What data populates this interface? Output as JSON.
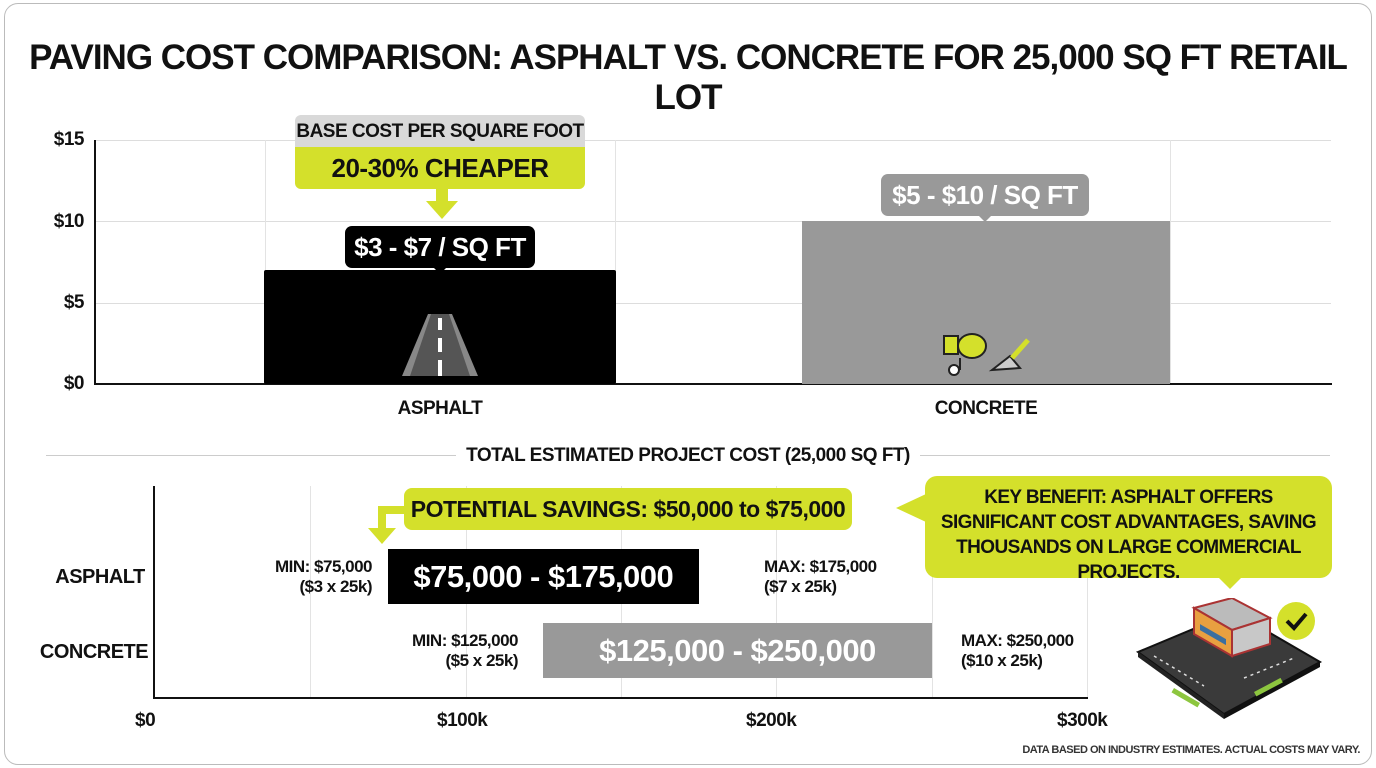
{
  "title": "PAVING COST COMPARISON: ASPHALT VS. CONCRETE FOR 25,000 SQ FT RETAIL LOT",
  "colors": {
    "asphalt": "#000000",
    "concrete": "#999999",
    "accent": "#d4e02b",
    "header_gray": "#d9d9d9"
  },
  "chart_data": [
    {
      "type": "bar",
      "categories": [
        "ASPHALT",
        "CONCRETE"
      ],
      "values": [
        7,
        10
      ],
      "ranges": [
        [
          3,
          7
        ],
        [
          5,
          10
        ]
      ],
      "data_labels": [
        "$3 - $7 / SQ FT",
        "$5 - $10 / SQ FT"
      ],
      "ylim": [
        0,
        15
      ],
      "yticks": [
        "$0",
        "$5",
        "$10",
        "$15"
      ],
      "grid": true,
      "annotation": {
        "header": "BASE COST PER SQUARE FOOT",
        "text": "20-30% CHEAPER"
      },
      "icons": [
        "road-icon",
        "cement-mixer-icon"
      ]
    },
    {
      "type": "bar",
      "orientation": "horizontal-range",
      "title": "TOTAL ESTIMATED PROJECT COST (25,000 SQ FT)",
      "categories": [
        "ASPHALT",
        "CONCRETE"
      ],
      "ranges": [
        [
          75000,
          175000
        ],
        [
          125000,
          250000
        ]
      ],
      "data_labels": [
        "$75,000 - $175,000",
        "$125,000 - $250,000"
      ],
      "min_labels": [
        [
          "MIN: $75,000",
          "($3 x 25k)"
        ],
        [
          "MIN: $125,000",
          "($5 x 25k)"
        ]
      ],
      "max_labels": [
        [
          "MAX: $175,000",
          "($7 x 25k)"
        ],
        [
          "MAX: $250,000",
          "($10 x 25k)"
        ]
      ],
      "xlim": [
        0,
        300000
      ],
      "xticks": [
        "$0",
        "$100k",
        "$200k",
        "$300k"
      ],
      "grid": true,
      "annotation": "POTENTIAL SAVINGS: $50,000 to $75,000"
    }
  ],
  "key_benefit": "KEY BENEFIT: ASPHALT OFFERS SIGNIFICANT COST ADVANTAGES, SAVING THOUSANDS ON LARGE COMMERCIAL PROJECTS.",
  "footnote": "DATA BASED ON INDUSTRY ESTIMATES. ACTUAL COSTS MAY VARY."
}
